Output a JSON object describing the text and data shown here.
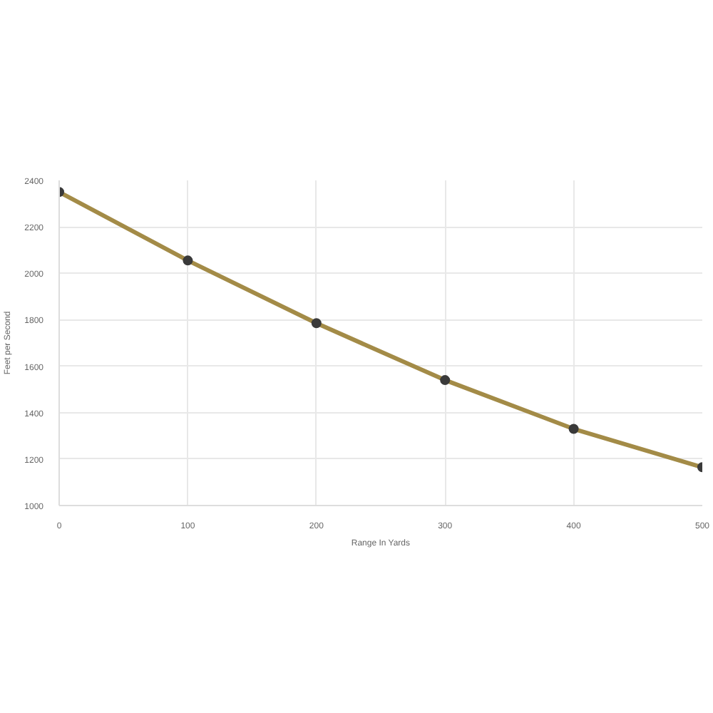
{
  "chart_data": {
    "type": "line",
    "xlabel": "Range In Yards",
    "ylabel": "Feet per Second",
    "x": [
      0,
      100,
      200,
      300,
      400,
      500
    ],
    "series": [
      {
        "color": "#a38b47",
        "values": [
          2350,
          2055,
          1785,
          1540,
          1330,
          1165
        ]
      }
    ],
    "marker": "circle",
    "line_style": "solid",
    "grid": true,
    "xlim": [
      0,
      500
    ],
    "xticks": [
      0,
      100,
      200,
      300,
      400,
      500
    ],
    "ylim": [
      1000,
      2400
    ],
    "yticks": [
      1000,
      1200,
      1400,
      1600,
      1800,
      2000,
      2200,
      2400
    ]
  }
}
